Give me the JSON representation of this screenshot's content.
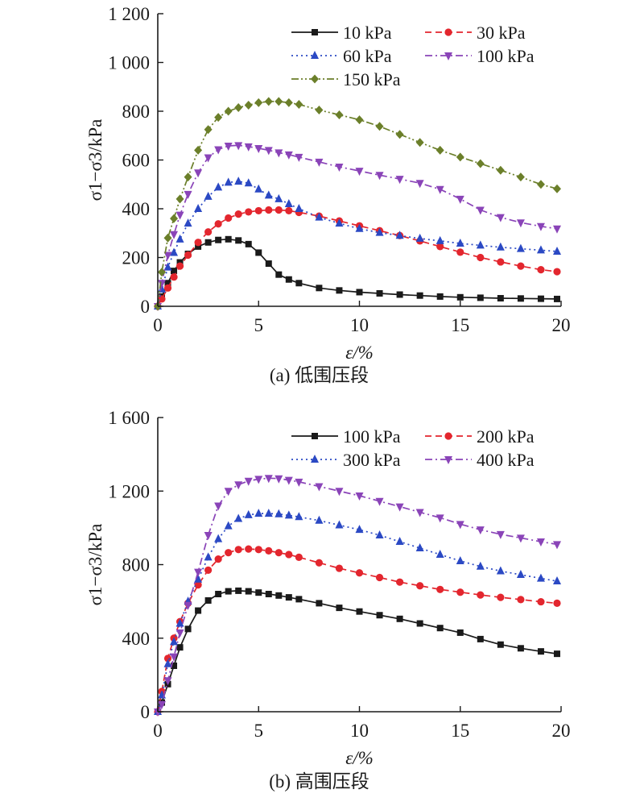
{
  "colors": {
    "black": "#1a1a1a",
    "red": "#e3262e",
    "blue": "#2b49c4",
    "purple": "#8a44b8",
    "olive": "#6b7f2a"
  },
  "chart_data": [
    {
      "type": "line",
      "caption": "(a) 低围压段",
      "xlabel": "ε/%",
      "ylabel": "σ1−σ3/kPa",
      "xlim": [
        0,
        20
      ],
      "ylim": [
        0,
        1200
      ],
      "xticks": [
        "0",
        "5",
        "10",
        "15",
        "20"
      ],
      "yticks": [
        "0",
        "200",
        "400",
        "600",
        "800",
        "1 000",
        "1 200"
      ],
      "grid": false,
      "legend_position": "top-right",
      "series": [
        {
          "name": "10 kPa",
          "color": "#1a1a1a",
          "marker": "square",
          "dash": "solid",
          "x": [
            0,
            0.2,
            0.5,
            0.8,
            1.1,
            1.5,
            2,
            2.5,
            3,
            3.5,
            4,
            4.5,
            5,
            5.5,
            6,
            6.5,
            7,
            8,
            9,
            10,
            11,
            12,
            13,
            14,
            15,
            16,
            17,
            18,
            19,
            19.8
          ],
          "y": [
            0,
            40,
            95,
            145,
            180,
            215,
            245,
            262,
            272,
            275,
            270,
            255,
            220,
            175,
            130,
            110,
            95,
            75,
            65,
            58,
            53,
            48,
            44,
            40,
            37,
            35,
            33,
            32,
            31,
            30
          ]
        },
        {
          "name": "30 kPa",
          "color": "#e3262e",
          "marker": "circle",
          "dash": "dashed",
          "x": [
            0,
            0.2,
            0.5,
            0.8,
            1.1,
            1.5,
            2,
            2.5,
            3,
            3.5,
            4,
            4.5,
            5,
            5.5,
            6,
            6.5,
            7,
            8,
            9,
            10,
            11,
            12,
            13,
            14,
            15,
            16,
            17,
            18,
            19,
            19.8
          ],
          "y": [
            0,
            30,
            75,
            120,
            165,
            210,
            262,
            305,
            338,
            362,
            378,
            387,
            392,
            395,
            395,
            392,
            385,
            370,
            350,
            330,
            310,
            290,
            268,
            245,
            222,
            200,
            182,
            165,
            150,
            142
          ]
        },
        {
          "name": "60 kPa",
          "color": "#2b49c4",
          "marker": "triangle",
          "dash": "dotted",
          "x": [
            0,
            0.2,
            0.5,
            0.8,
            1.1,
            1.5,
            2,
            2.5,
            3,
            3.5,
            4,
            4.5,
            5,
            5.5,
            6,
            6.5,
            7,
            8,
            9,
            10,
            11,
            12,
            13,
            14,
            15,
            16,
            17,
            18,
            19,
            19.8
          ],
          "y": [
            0,
            70,
            160,
            220,
            275,
            340,
            400,
            450,
            488,
            508,
            512,
            505,
            480,
            455,
            440,
            420,
            400,
            365,
            340,
            318,
            302,
            290,
            278,
            268,
            258,
            250,
            242,
            236,
            230,
            225
          ]
        },
        {
          "name": "100 kPa",
          "color": "#8a44b8",
          "marker": "triangle-down",
          "dash": "dashdot",
          "x": [
            0,
            0.2,
            0.5,
            0.8,
            1.1,
            1.5,
            2,
            2.5,
            3,
            3.5,
            4,
            4.5,
            5,
            5.5,
            6,
            6.5,
            7,
            8,
            9,
            10,
            11,
            12,
            13,
            14,
            15,
            16,
            17,
            18,
            19,
            19.8
          ],
          "y": [
            0,
            95,
            210,
            295,
            375,
            460,
            548,
            610,
            643,
            658,
            660,
            655,
            648,
            640,
            630,
            622,
            612,
            592,
            572,
            555,
            538,
            522,
            505,
            480,
            440,
            395,
            365,
            343,
            328,
            318
          ]
        },
        {
          "name": "150 kPa",
          "color": "#6b7f2a",
          "marker": "diamond",
          "dash": "dashdotdot",
          "x": [
            0,
            0.2,
            0.5,
            0.8,
            1.1,
            1.5,
            2,
            2.5,
            3,
            3.5,
            4,
            4.5,
            5,
            5.5,
            6,
            6.5,
            7,
            8,
            9,
            10,
            11,
            12,
            13,
            14,
            15,
            16,
            17,
            18,
            19,
            19.8
          ],
          "y": [
            0,
            140,
            280,
            360,
            440,
            530,
            640,
            725,
            775,
            800,
            815,
            825,
            835,
            840,
            840,
            835,
            828,
            805,
            785,
            765,
            738,
            705,
            672,
            640,
            612,
            585,
            558,
            530,
            500,
            482
          ]
        }
      ]
    },
    {
      "type": "line",
      "caption": "(b) 高围压段",
      "xlabel": "ε/%",
      "ylabel": "σ1−σ3/kPa",
      "xlim": [
        0,
        20
      ],
      "ylim": [
        0,
        1600
      ],
      "xticks": [
        "0",
        "5",
        "10",
        "15",
        "20"
      ],
      "yticks": [
        "0",
        "400",
        "800",
        "1 200",
        "1 600"
      ],
      "grid": false,
      "legend_position": "top-right",
      "series": [
        {
          "name": "100 kPa",
          "color": "#1a1a1a",
          "marker": "square",
          "dash": "solid",
          "x": [
            0,
            0.2,
            0.5,
            0.8,
            1.1,
            1.5,
            2,
            2.5,
            3,
            3.5,
            4,
            4.5,
            5,
            5.5,
            6,
            6.5,
            7,
            8,
            9,
            10,
            11,
            12,
            13,
            14,
            15,
            16,
            17,
            18,
            19,
            19.8
          ],
          "y": [
            0,
            50,
            150,
            250,
            350,
            450,
            550,
            605,
            640,
            655,
            658,
            655,
            648,
            640,
            632,
            622,
            612,
            590,
            565,
            545,
            525,
            505,
            480,
            455,
            430,
            395,
            365,
            345,
            328,
            315
          ]
        },
        {
          "name": "200 kPa",
          "color": "#e3262e",
          "marker": "circle",
          "dash": "dashed",
          "x": [
            0,
            0.2,
            0.5,
            0.8,
            1.1,
            1.5,
            2,
            2.5,
            3,
            3.5,
            4,
            4.5,
            5,
            5.5,
            6,
            6.5,
            7,
            8,
            9,
            10,
            11,
            12,
            13,
            14,
            15,
            16,
            17,
            18,
            19,
            19.8
          ],
          "y": [
            0,
            110,
            290,
            400,
            490,
            590,
            690,
            770,
            830,
            865,
            882,
            885,
            882,
            875,
            865,
            855,
            840,
            810,
            780,
            755,
            730,
            705,
            685,
            665,
            650,
            635,
            622,
            610,
            598,
            590
          ]
        },
        {
          "name": "300 kPa",
          "color": "#2b49c4",
          "marker": "triangle",
          "dash": "dotted",
          "x": [
            0,
            0.2,
            0.5,
            0.8,
            1.1,
            1.5,
            2,
            2.5,
            3,
            3.5,
            4,
            4.5,
            5,
            5.5,
            6,
            6.5,
            7,
            8,
            9,
            10,
            11,
            12,
            13,
            14,
            15,
            16,
            17,
            18,
            19,
            19.8
          ],
          "y": [
            0,
            90,
            260,
            380,
            480,
            600,
            720,
            840,
            940,
            1010,
            1050,
            1070,
            1078,
            1078,
            1075,
            1068,
            1060,
            1040,
            1015,
            990,
            960,
            925,
            890,
            855,
            820,
            790,
            765,
            745,
            725,
            710
          ]
        },
        {
          "name": "400 kPa",
          "color": "#8a44b8",
          "marker": "triangle-down",
          "dash": "dashdot",
          "x": [
            0,
            0.2,
            0.5,
            0.8,
            1.1,
            1.5,
            2,
            2.5,
            3,
            3.5,
            4,
            4.5,
            5,
            5.5,
            6,
            6.5,
            7,
            8,
            9,
            10,
            11,
            12,
            13,
            14,
            15,
            16,
            17,
            18,
            19,
            19.8
          ],
          "y": [
            0,
            40,
            170,
            300,
            430,
            580,
            760,
            960,
            1120,
            1200,
            1235,
            1255,
            1265,
            1270,
            1268,
            1260,
            1250,
            1225,
            1200,
            1175,
            1145,
            1115,
            1085,
            1055,
            1020,
            990,
            965,
            945,
            925,
            910
          ]
        }
      ]
    }
  ]
}
